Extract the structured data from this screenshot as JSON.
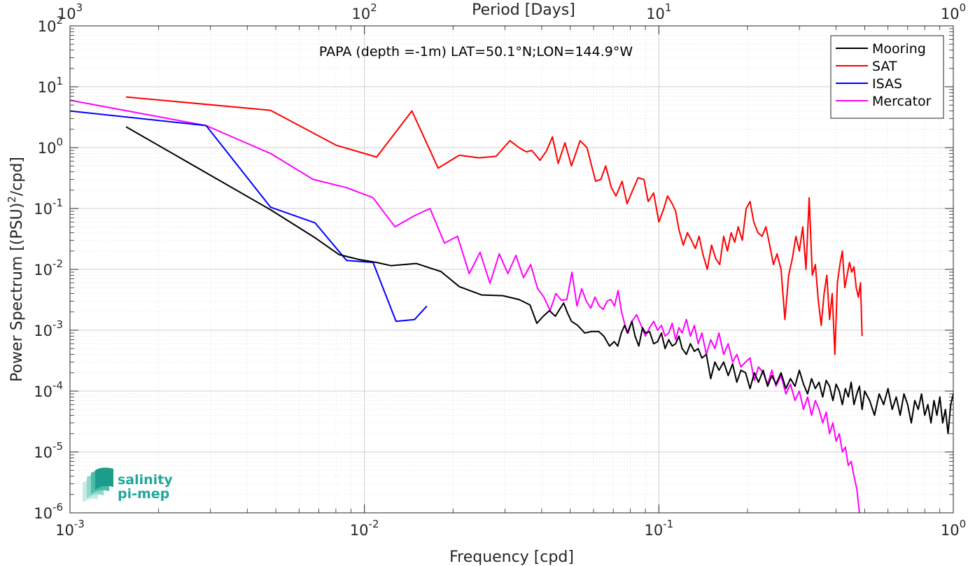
{
  "chart_data": {
    "type": "line",
    "annotation": "PAPA (depth =-1m) LAT=50.1°N;LON=144.9°W",
    "xlabel": "Frequency [cpd]",
    "ylabel_main": "Power Spectrum [(PSU)",
    "ylabel_sup": "2",
    "ylabel_tail": "/cpd]",
    "top_xlabel": "Period [Days]",
    "xscale": "log",
    "yscale": "log",
    "xlim": [
      0.001,
      1
    ],
    "ylim": [
      1e-06,
      100
    ],
    "grid": true,
    "legend_position": "top-right",
    "x_ticks": [
      {
        "value": 0.001,
        "base": "10",
        "exp": "-3"
      },
      {
        "value": 0.01,
        "base": "10",
        "exp": "-2"
      },
      {
        "value": 0.1,
        "base": "10",
        "exp": "-1"
      },
      {
        "value": 1,
        "base": "10",
        "exp": "0"
      }
    ],
    "top_ticks": [
      {
        "value": 0.001,
        "base": "10",
        "exp": "3"
      },
      {
        "value": 0.01,
        "base": "10",
        "exp": "2"
      },
      {
        "value": 0.1,
        "base": "10",
        "exp": "1"
      },
      {
        "value": 1,
        "base": "10",
        "exp": "0"
      }
    ],
    "y_ticks": [
      {
        "value": 100,
        "base": "10",
        "exp": "2"
      },
      {
        "value": 10,
        "base": "10",
        "exp": "1"
      },
      {
        "value": 1,
        "base": "10",
        "exp": "0"
      },
      {
        "value": 0.1,
        "base": "10",
        "exp": "-1"
      },
      {
        "value": 0.01,
        "base": "10",
        "exp": "-2"
      },
      {
        "value": 0.001,
        "base": "10",
        "exp": "-3"
      },
      {
        "value": 0.0001,
        "base": "10",
        "exp": "-4"
      },
      {
        "value": 1e-05,
        "base": "10",
        "exp": "-5"
      },
      {
        "value": 1e-06,
        "base": "10",
        "exp": "-6"
      }
    ],
    "series": [
      {
        "name": "Mooring",
        "color": "#000000",
        "x": [
          0.00155,
          0.0048,
          0.0068,
          0.0082,
          0.0096,
          0.011,
          0.0123,
          0.015,
          0.0182,
          0.021,
          0.025,
          0.0295,
          0.0335,
          0.0365,
          0.0385,
          0.0405,
          0.0425,
          0.0445,
          0.046,
          0.0475,
          0.049,
          0.0505,
          0.053,
          0.056,
          0.059,
          0.0625,
          0.065,
          0.068,
          0.0705,
          0.0725,
          0.0745,
          0.0765,
          0.0785,
          0.081,
          0.083,
          0.0855,
          0.088,
          0.09,
          0.093,
          0.096,
          0.099,
          0.102,
          0.105,
          0.108,
          0.111,
          0.114,
          0.117,
          0.12,
          0.124,
          0.128,
          0.132,
          0.136,
          0.14,
          0.145,
          0.15,
          0.155,
          0.16,
          0.166,
          0.172,
          0.178,
          0.184,
          0.19,
          0.197,
          0.204,
          0.211,
          0.218,
          0.226,
          0.234,
          0.242,
          0.25,
          0.26,
          0.27,
          0.28,
          0.29,
          0.3,
          0.31,
          0.32,
          0.33,
          0.34,
          0.35,
          0.36,
          0.37,
          0.38,
          0.39,
          0.4,
          0.41,
          0.42,
          0.43,
          0.44,
          0.45,
          0.46,
          0.47,
          0.48,
          0.49,
          0.5,
          0.52,
          0.54,
          0.56,
          0.58,
          0.6,
          0.62,
          0.64,
          0.66,
          0.68,
          0.7,
          0.72,
          0.74,
          0.76,
          0.78,
          0.8,
          0.82,
          0.84,
          0.86,
          0.88,
          0.9,
          0.92,
          0.94,
          0.96,
          0.98,
          1.0
        ],
        "y": [
          2.2,
          0.095,
          0.033,
          0.0175,
          0.0145,
          0.013,
          0.0115,
          0.0125,
          0.0092,
          0.0052,
          0.0038,
          0.0037,
          0.0032,
          0.0026,
          0.0013,
          0.0017,
          0.0021,
          0.0017,
          0.0022,
          0.0028,
          0.0019,
          0.0014,
          0.0012,
          0.0009,
          0.00095,
          0.00095,
          0.0008,
          0.00055,
          0.00065,
          0.00055,
          0.0009,
          0.0012,
          0.0009,
          0.0014,
          0.0008,
          0.00055,
          0.0011,
          0.0009,
          0.00095,
          0.0006,
          0.00065,
          0.0009,
          0.0005,
          0.0007,
          0.00055,
          0.0006,
          0.0008,
          0.0005,
          0.0004,
          0.0006,
          0.00045,
          0.0005,
          0.00035,
          0.0004,
          0.00016,
          0.0003,
          0.00022,
          0.0003,
          0.00018,
          0.00028,
          0.00014,
          0.00022,
          0.0002,
          0.00011,
          0.0002,
          0.00014,
          0.00022,
          0.00012,
          0.00018,
          0.00013,
          0.0002,
          0.00011,
          0.00016,
          0.00012,
          0.00022,
          0.00013,
          9e-05,
          0.00016,
          0.00011,
          0.00014,
          8e-05,
          0.00015,
          0.00012,
          7e-05,
          0.00013,
          0.0001,
          6e-05,
          0.00011,
          8e-05,
          0.00014,
          6e-05,
          9e-05,
          0.00012,
          5e-05,
          0.0001,
          7e-05,
          4e-05,
          9e-05,
          6e-05,
          0.00011,
          5e-05,
          8e-05,
          4e-05,
          9e-05,
          6e-05,
          3e-05,
          7e-05,
          5e-05,
          9e-05,
          4e-05,
          6e-05,
          3e-05,
          7e-05,
          4e-05,
          8e-05,
          3e-05,
          5e-05,
          2e-05,
          6e-05,
          9e-05
        ]
      },
      {
        "name": "SAT",
        "color": "#ff0000",
        "x": [
          0.00155,
          0.0048,
          0.008,
          0.011,
          0.0145,
          0.0178,
          0.021,
          0.0245,
          0.028,
          0.0312,
          0.0335,
          0.0355,
          0.037,
          0.0395,
          0.0415,
          0.0435,
          0.0455,
          0.048,
          0.0505,
          0.054,
          0.057,
          0.061,
          0.0635,
          0.066,
          0.069,
          0.0715,
          0.075,
          0.078,
          0.0815,
          0.085,
          0.089,
          0.092,
          0.096,
          0.1,
          0.104,
          0.107,
          0.111,
          0.114,
          0.117,
          0.121,
          0.125,
          0.129,
          0.133,
          0.137,
          0.141,
          0.146,
          0.151,
          0.156,
          0.161,
          0.166,
          0.171,
          0.176,
          0.181,
          0.186,
          0.192,
          0.198,
          0.204,
          0.21,
          0.217,
          0.224,
          0.231,
          0.238,
          0.245,
          0.252,
          0.26,
          0.268,
          0.276,
          0.284,
          0.292,
          0.3,
          0.308,
          0.316,
          0.324,
          0.332,
          0.34,
          0.348,
          0.356,
          0.364,
          0.372,
          0.38,
          0.388,
          0.396,
          0.404,
          0.412,
          0.42,
          0.428,
          0.436,
          0.444,
          0.452,
          0.46,
          0.468,
          0.476,
          0.484,
          0.49
        ],
        "y": [
          6.8,
          4.1,
          1.1,
          0.7,
          4.0,
          0.46,
          0.75,
          0.68,
          0.72,
          1.3,
          1.0,
          0.85,
          0.9,
          0.62,
          0.88,
          1.5,
          0.55,
          1.2,
          0.5,
          1.3,
          1.0,
          0.28,
          0.3,
          0.5,
          0.22,
          0.16,
          0.28,
          0.12,
          0.2,
          0.32,
          0.3,
          0.13,
          0.18,
          0.06,
          0.1,
          0.16,
          0.12,
          0.09,
          0.045,
          0.025,
          0.04,
          0.03,
          0.022,
          0.035,
          0.018,
          0.01,
          0.025,
          0.015,
          0.012,
          0.035,
          0.02,
          0.04,
          0.028,
          0.05,
          0.03,
          0.1,
          0.13,
          0.06,
          0.04,
          0.035,
          0.05,
          0.025,
          0.012,
          0.018,
          0.01,
          0.0015,
          0.008,
          0.015,
          0.035,
          0.02,
          0.05,
          0.01,
          0.15,
          0.008,
          0.012,
          0.003,
          0.0012,
          0.004,
          0.008,
          0.0015,
          0.004,
          0.0004,
          0.006,
          0.012,
          0.02,
          0.005,
          0.008,
          0.013,
          0.009,
          0.011,
          0.005,
          0.0035,
          0.006,
          0.0008
        ]
      },
      {
        "name": "ISAS",
        "color": "#0000ff",
        "x": [
          0.001,
          0.0029,
          0.0048,
          0.0068,
          0.0087,
          0.0107,
          0.0128,
          0.0148,
          0.0163
        ],
        "y": [
          4.0,
          2.3,
          0.105,
          0.058,
          0.014,
          0.013,
          0.0014,
          0.0015,
          0.0025
        ]
      },
      {
        "name": "Mercator",
        "color": "#ff00ff",
        "x": [
          0.001,
          0.0029,
          0.0048,
          0.0067,
          0.0087,
          0.0107,
          0.0127,
          0.0147,
          0.0167,
          0.0187,
          0.0207,
          0.0227,
          0.0247,
          0.0267,
          0.0287,
          0.0307,
          0.0327,
          0.0347,
          0.0367,
          0.0387,
          0.0407,
          0.0427,
          0.0447,
          0.0467,
          0.0487,
          0.0507,
          0.0527,
          0.0547,
          0.0567,
          0.0587,
          0.0607,
          0.0627,
          0.0647,
          0.0667,
          0.0687,
          0.0707,
          0.0727,
          0.0747,
          0.078,
          0.081,
          0.084,
          0.087,
          0.09,
          0.093,
          0.096,
          0.099,
          0.102,
          0.105,
          0.108,
          0.111,
          0.114,
          0.117,
          0.12,
          0.124,
          0.128,
          0.132,
          0.136,
          0.14,
          0.145,
          0.15,
          0.155,
          0.16,
          0.166,
          0.172,
          0.178,
          0.184,
          0.19,
          0.197,
          0.204,
          0.211,
          0.218,
          0.226,
          0.234,
          0.242,
          0.25,
          0.26,
          0.27,
          0.28,
          0.29,
          0.3,
          0.31,
          0.32,
          0.33,
          0.34,
          0.35,
          0.36,
          0.37,
          0.38,
          0.39,
          0.4,
          0.41,
          0.42,
          0.43,
          0.44,
          0.45,
          0.46,
          0.47,
          0.48
        ],
        "y": [
          6.0,
          2.3,
          0.8,
          0.3,
          0.22,
          0.15,
          0.05,
          0.075,
          0.1,
          0.027,
          0.035,
          0.0085,
          0.019,
          0.0059,
          0.018,
          0.0085,
          0.017,
          0.0073,
          0.012,
          0.0049,
          0.0035,
          0.0021,
          0.004,
          0.0031,
          0.0032,
          0.009,
          0.0025,
          0.0048,
          0.003,
          0.0023,
          0.0035,
          0.0025,
          0.0022,
          0.003,
          0.0032,
          0.0025,
          0.0045,
          0.002,
          0.0009,
          0.0014,
          0.0018,
          0.0012,
          0.0008,
          0.0011,
          0.0014,
          0.001,
          0.0012,
          0.0008,
          0.0009,
          0.0013,
          0.0007,
          0.0011,
          0.0009,
          0.0015,
          0.0008,
          0.0012,
          0.0006,
          0.0009,
          0.0004,
          0.0007,
          0.0005,
          0.0009,
          0.0004,
          0.0006,
          0.0003,
          0.0004,
          0.00025,
          0.0003,
          0.00035,
          0.00015,
          0.00025,
          0.0002,
          0.00013,
          0.00022,
          0.00012,
          0.00018,
          9e-05,
          0.00013,
          7e-05,
          0.0001,
          5e-05,
          8e-05,
          4e-05,
          7e-05,
          5e-05,
          3e-05,
          4.5e-05,
          2e-05,
          3e-05,
          1.5e-05,
          2e-05,
          1e-05,
          1.2e-05,
          6e-06,
          7e-06,
          4e-06,
          2.5e-06,
          1e-06
        ]
      }
    ]
  },
  "logo": {
    "line1": "salinity",
    "line2": "pi-mep",
    "color": "#1fa89a"
  }
}
